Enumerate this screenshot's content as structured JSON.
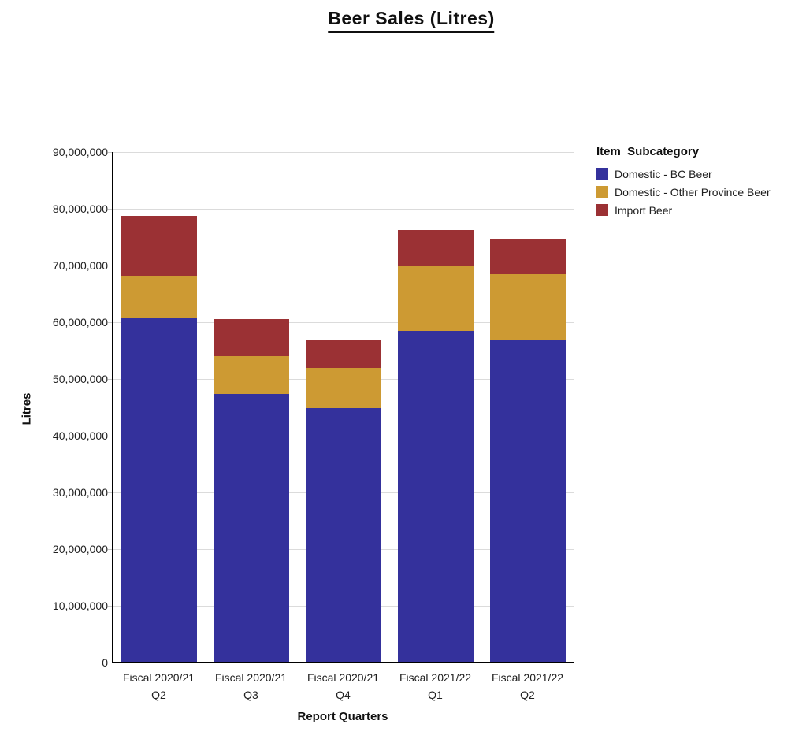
{
  "title": "Beer Sales (Litres)",
  "axes": {
    "x_title": "Report Quarters",
    "y_title": "Litres"
  },
  "legend": {
    "title": "Item  Subcategory",
    "items": [
      {
        "label": "Domestic - BC Beer",
        "color": "#34319c"
      },
      {
        "label": "Domestic - Other Province Beer",
        "color": "#cd9a33"
      },
      {
        "label": "Import Beer",
        "color": "#9b3134"
      }
    ]
  },
  "colors": {
    "background": "#ffffff",
    "gridline": "#dbdbdb",
    "axis_line": "#000000",
    "text": "#202020"
  },
  "chart_data": {
    "type": "bar",
    "stacked": true,
    "title": "Beer Sales (Litres)",
    "xlabel": "Report Quarters",
    "ylabel": "Litres",
    "grid": "horizontal",
    "legend_position": "right",
    "legend_title": "Item  Subcategory",
    "categories": [
      [
        "Fiscal 2020/21",
        "Q2"
      ],
      [
        "Fiscal 2020/21",
        "Q3"
      ],
      [
        "Fiscal 2020/21",
        "Q4"
      ],
      [
        "Fiscal 2021/22",
        "Q1"
      ],
      [
        "Fiscal 2021/22",
        "Q2"
      ]
    ],
    "series": [
      {
        "name": "Domestic - BC Beer",
        "color": "#34319c",
        "values": [
          60800000,
          47400000,
          44800000,
          58500000,
          57000000
        ]
      },
      {
        "name": "Domestic - Other Province Beer",
        "color": "#cd9a33",
        "values": [
          7400000,
          6600000,
          7100000,
          11400000,
          11500000
        ]
      },
      {
        "name": "Import Beer",
        "color": "#9b3134",
        "values": [
          10500000,
          6600000,
          5000000,
          6400000,
          6200000
        ]
      }
    ],
    "stack_totals": [
      78700000,
      60600000,
      56900000,
      76300000,
      74700000
    ],
    "ylim": [
      0,
      90000000
    ],
    "y_tick_step": 10000000,
    "y_tick_labels": [
      "0",
      "10,000,000",
      "20,000,000",
      "30,000,000",
      "40,000,000",
      "50,000,000",
      "60,000,000",
      "70,000,000",
      "80,000,000",
      "90,000,000"
    ]
  }
}
